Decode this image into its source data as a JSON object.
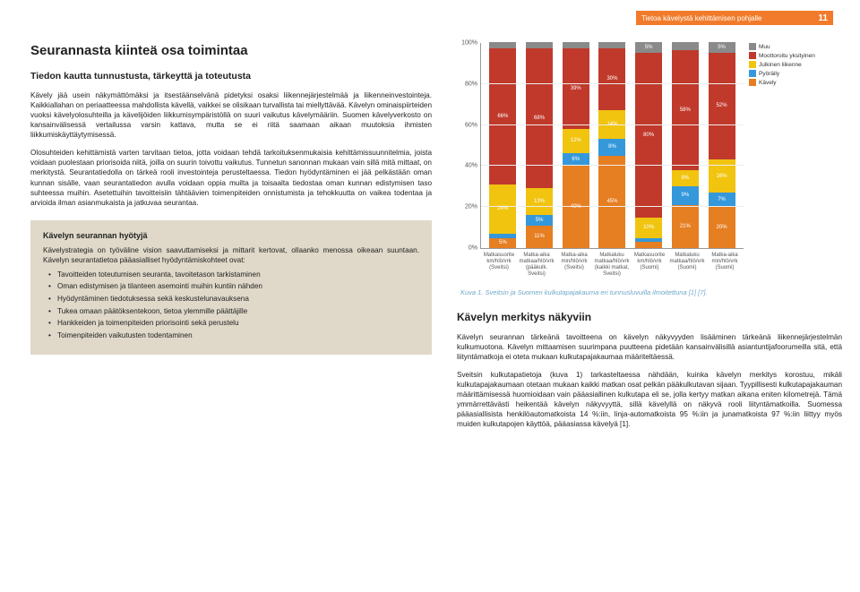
{
  "header": {
    "running_title": "Tietoa kävelystä kehittämisen pohjalle",
    "page_number": "11"
  },
  "left": {
    "section_title": "Seurannasta kiinteä osa toimintaa",
    "subhead": "Tiedon kautta tunnustusta, tärkeyttä ja toteutusta",
    "p1": "Kävely jää usein näkymättömäksi ja itsestäänselvänä pidetyksi osaksi liikennejärjestelmää ja liikenneinvestointeja. Kaikkiallahan on periaatteessa mahdollista kävellä, vaikkei se olisikaan turvallista tai miellyttävää. Kävelyn ominaispiirteiden vuoksi kävelyolosuhteilla ja kävelijöiden liikkumisympäristöllä on suuri vaikutus kävelymääriin. Suomen kävelyverkosto on kansainvälisessä vertailussa varsin kattava, mutta se ei riitä saamaan aikaan muutoksia ihmisten liikkumiskäyttäytymisessä.",
    "p2": "Olosuhteiden kehittämistä varten tarvitaan tietoa, jotta voidaan tehdä tarkoituksenmukaisia kehittämissuunnitelmia, joista voidaan puolestaan priorisoida niitä, joilla on suurin toivottu vaikutus. Tunnetun sanonnan mukaan vain sillä mitä mittaat, on merkitystä. Seurantatiedolla on tärkeä rooli investointeja perusteltaessa. Tiedon hyödyntäminen ei jää pelkästään oman kunnan sisälle, vaan seurantatiedon avulla voidaan oppia muilta ja toisaalta tiedostaa oman kunnan edistymisen taso suhteessa muihin. Asetettuihin tavoitteisiin tähtäävien toimenpiteiden onnistumista ja tehokkuutta on vaikea todentaa ja arvioida ilman asianmukaista ja jatkuvaa seurantaa.",
    "box": {
      "title": "Kävelyn seurannan hyötyjä",
      "intro": "Kävelystrategia on työväline vision saavuttamiseksi ja mittarit kertovat, ollaanko menossa oikeaan suuntaan. Kävelyn seurantatietoa pääasialliset hyödyntämiskohteet ovat:",
      "items": [
        "Tavoitteiden toteutumisen seuranta, tavoitetason tarkistaminen",
        "Oman edistymisen ja tilanteen asemointi muihin kuntiin nähden",
        "Hyödyntäminen tiedotuksessa sekä keskustelunavauksena",
        "Tukea omaan päätöksentekoon, tietoa ylemmille päättäjille",
        "Hankkeiden ja toimenpiteiden priorisointi sekä perustelu",
        "Toimenpiteiden vaikutusten todentaminen"
      ]
    }
  },
  "chart": {
    "type": "stacked_bar",
    "ylim": [
      0,
      100
    ],
    "ytick_step": 20,
    "y_suffix": "%",
    "background_color": "#ffffff",
    "grid_color": "#eeeeee",
    "legend": [
      {
        "label": "Muu",
        "color": "#8a8a8a"
      },
      {
        "label": "Moottoroitu yksityinen",
        "color": "#c0392b"
      },
      {
        "label": "Julkinen liikenne",
        "color": "#f1c40f"
      },
      {
        "label": "Pyöräily",
        "color": "#3498db"
      },
      {
        "label": "Kävely",
        "color": "#e67e22"
      }
    ],
    "categories": [
      "Matkasuorite km/hlö/vrk (Sveitsi)",
      "Matka-aika matkaa/hlö/vrk (pääkulk. Sveitsi)",
      "Matka-aika min/hlö/vrk (Sveitsi)",
      "Matkaluku matkaa/hlö/vrk (kaikki matkat, Sveitsi)",
      "Matkasuorite km/hlö/vrk (Suomi)",
      "Matkaluku matkaa/hlö/vrk (Suomi)",
      "Matka-aika min/hlö/vrk (Suomi)"
    ],
    "series_order": [
      "kavely",
      "pyoraily",
      "julkinen",
      "moottori",
      "muu"
    ],
    "values": [
      {
        "kavely": 5,
        "pyoraily": 2,
        "julkinen": 24,
        "moottori": 66,
        "muu": 3
      },
      {
        "kavely": 11,
        "pyoraily": 5,
        "julkinen": 13,
        "moottori": 68,
        "muu": 3
      },
      {
        "kavely": 40,
        "pyoraily": 6,
        "julkinen": 12,
        "moottori": 39,
        "muu": 3
      },
      {
        "kavely": 45,
        "pyoraily": 8,
        "julkinen": 14,
        "moottori": 30,
        "muu": 3
      },
      {
        "kavely": 3,
        "pyoraily": 2,
        "julkinen": 10,
        "moottori": 80,
        "muu": 5
      },
      {
        "kavely": 21,
        "pyoraily": 9,
        "julkinen": 8,
        "moottori": 58,
        "muu": 4
      },
      {
        "kavely": 20,
        "pyoraily": 7,
        "julkinen": 16,
        "moottori": 52,
        "muu": 5
      }
    ],
    "series_colors": {
      "kavely": "#e67e22",
      "pyoraily": "#3498db",
      "julkinen": "#f1c40f",
      "moottori": "#c0392b",
      "muu": "#8a8a8a"
    },
    "label_fontsize": 6,
    "caption": "Kuva 1. Sveitsin ja Suomen kulkutapajakauma eri tunnusluvuilla ilmoitettuna [1] [7]."
  },
  "right": {
    "heading": "Kävelyn merkitys näkyviin",
    "p1": "Kävelyn seurannan tärkeänä tavoitteena on kävelyn näkyvyyden lisääminen tärkeänä liikennejärjestelmän kulkumuotona. Kävelyn mittaamisen suurimpana puutteena pidetään kansainvälisillä asiantuntijafoorumeilla sitä, että liityntämatkoja ei oteta mukaan kulkutapajakaumaa määriteltäessä.",
    "p2": "Sveitsin kulkutapatietoja (kuva 1) tarkasteltaessa nähdään, kuinka kävelyn merkitys korostuu, mikäli kulkutapajakaumaan otetaan mukaan kaikki matkan osat pelkän pääkulkutavan sijaan. Tyypillisesti kulkutapajakauman määrittämisessä huomioidaan vain pääasiallinen kulkutapa eli se, jolla kertyy matkan aikana eniten kilometrejä. Tämä ymmärrettävästi heikentää kävelyn näkyvyyttä, sillä kävelyllä on näkyvä rooli liityntämatkoilla. Suomessa pääasiallisista henkilöautomatkoista 14 %:iin, linja-automatkoista 95 %:iin ja junamatkoista 97 %:iin liittyy myös muiden kulkutapojen käyttöä, pääasiassa kävelyä [1]."
  }
}
